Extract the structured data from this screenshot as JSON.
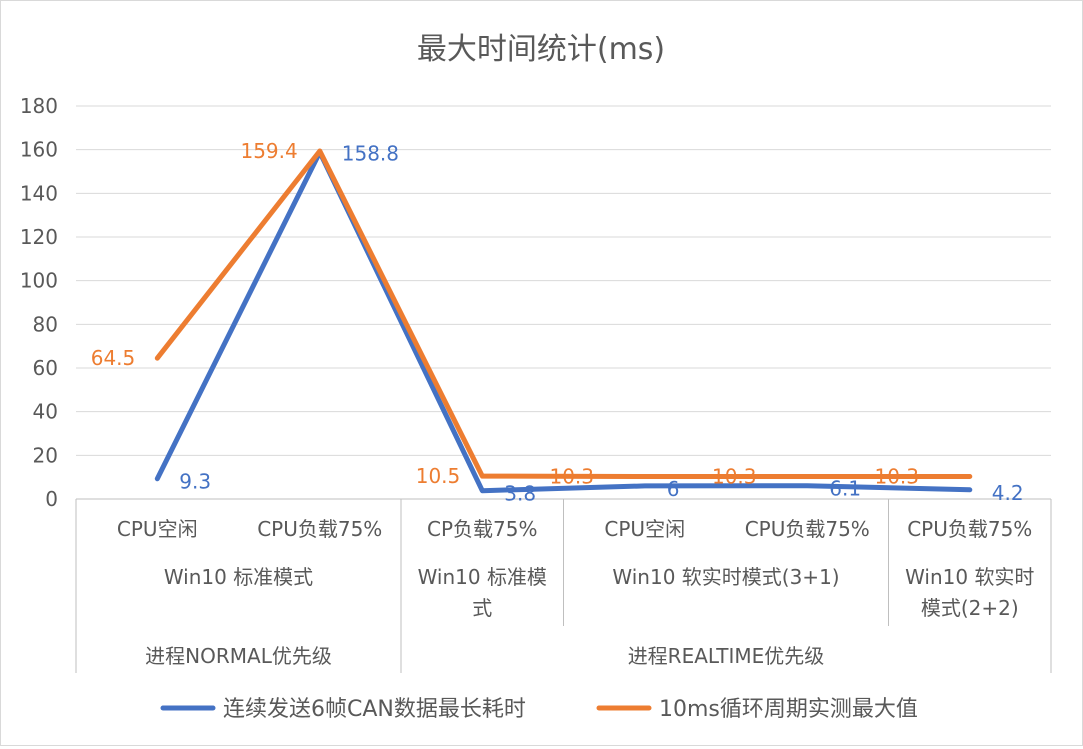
{
  "chart_data": {
    "type": "line",
    "title": "最大时间统计(ms)",
    "ylim": [
      0,
      180
    ],
    "yticks": [
      0,
      20,
      40,
      60,
      80,
      100,
      120,
      140,
      160,
      180
    ],
    "grid": true,
    "legend_position": "bottom",
    "categories": [
      {
        "level1": "CPU空闲",
        "level2": "Win10 标准模式",
        "level3": "进程NORMAL优先级"
      },
      {
        "level1": "CPU负载75%",
        "level2": "Win10 标准模式",
        "level3": "进程NORMAL优先级"
      },
      {
        "level1": "CP负载75%",
        "level2": "Win10 标准模式",
        "level3": "进程REALTIME优先级"
      },
      {
        "level1": "CPU空闲",
        "level2": "Win10 软实时模式(3+1)",
        "level3": "进程REALTIME优先级"
      },
      {
        "level1": "CPU负载75%",
        "level2": "Win10 软实时模式(3+1)",
        "level3": "进程REALTIME优先级"
      },
      {
        "level1": "CPU负载75%",
        "level2": "Win10 软实时模式(2+2)",
        "level3": "进程REALTIME优先级"
      }
    ],
    "level1_labels": [
      "CPU空闲",
      "CPU负载75%",
      "CP负载75%",
      "CPU空闲",
      "CPU负载75%",
      "CPU负载75%"
    ],
    "level2_groups": [
      {
        "label_lines": [
          "Win10 标准模式"
        ]
      },
      {
        "label_lines": [
          "Win10 标准模",
          "式"
        ]
      },
      {
        "label_lines": [
          "Win10 软实时模式(3+1)"
        ]
      },
      {
        "label_lines": [
          "Win10 软实时",
          "模式(2+2)"
        ]
      }
    ],
    "level3_groups": [
      {
        "label": "进程NORMAL优先级"
      },
      {
        "label": "进程REALTIME优先级"
      }
    ],
    "series": [
      {
        "name": "连续发送6帧CAN数据最长耗时",
        "color": "#4472c4",
        "values": [
          9.3,
          158.8,
          3.8,
          6,
          6.1,
          4.2
        ],
        "labels": [
          "9.3",
          "158.8",
          "3.8",
          "6",
          "6.1",
          "4.2"
        ]
      },
      {
        "name": "10ms循环周期实测最大值",
        "color": "#ed7d31",
        "values": [
          64.5,
          159.4,
          10.5,
          10.3,
          10.3,
          10.3
        ],
        "labels": [
          "64.5",
          "159.4",
          "10.5",
          "10.3",
          "10.3",
          "10.3"
        ]
      }
    ]
  }
}
